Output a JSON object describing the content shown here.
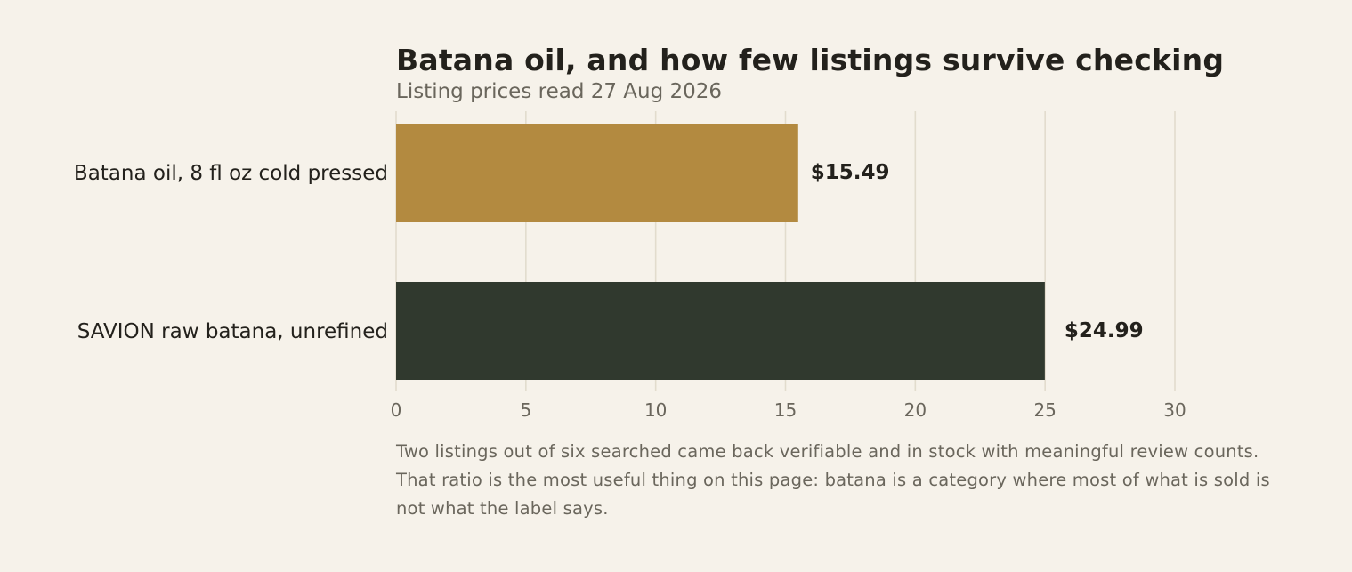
{
  "chart_data": {
    "type": "bar",
    "orientation": "horizontal",
    "title": "Batana oil, and how few listings survive checking",
    "subtitle": "Listing prices read 27 Aug 2026",
    "categories": [
      "Batana oil, 8 fl oz cold pressed",
      "SAVION raw batana, unrefined"
    ],
    "values": [
      15.49,
      24.99
    ],
    "value_labels": [
      "$15.49",
      "$24.99"
    ],
    "bar_colors": [
      "#b38a40",
      "#30392e"
    ],
    "xlim": [
      0,
      30
    ],
    "x_ticks": [
      0,
      5,
      10,
      15,
      20,
      25,
      30
    ],
    "x_tick_labels": [
      "0",
      "5",
      "10",
      "15",
      "20",
      "25",
      "30"
    ],
    "xlabel": "",
    "ylabel": "",
    "grid": "vertical",
    "legend": "none"
  },
  "note": "Two listings out of six searched came back verifiable and in stock with meaningful review counts. That ratio is the most useful thing on this page: batana is a category where most of what is sold is not what the label says.",
  "colors": {
    "background": "#f6f2ea",
    "grid": "#e2dccd",
    "text_dark": "#23211c",
    "text_muted": "#6a665c"
  }
}
